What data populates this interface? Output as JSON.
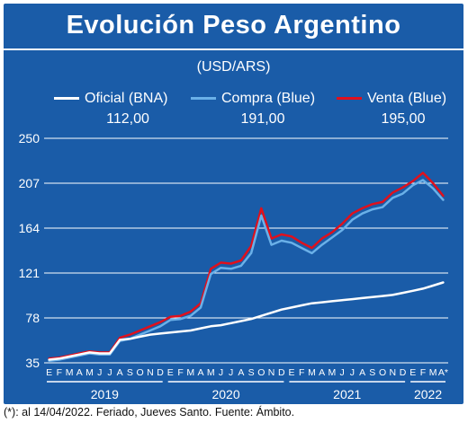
{
  "header": {
    "title": "Evolución Peso Argentino",
    "subtitle": "(USD/ARS)"
  },
  "legend": [
    {
      "label": "Oficial (BNA)",
      "value": "112,00",
      "color": "#ffffff"
    },
    {
      "label": "Compra (Blue)",
      "value": "191,00",
      "color": "#6ab0e8"
    },
    {
      "label": "Venta (Blue)",
      "value": "195,00",
      "color": "#e0101c"
    }
  ],
  "footnote": "(*): al 14/04/2022. Feriado, Jueves Santo. Fuente: Ámbito.",
  "chart_data": {
    "type": "line",
    "ylim": [
      35,
      250
    ],
    "y_ticks": [
      "250",
      "207",
      "164",
      "121",
      "78",
      "35"
    ],
    "grid": true,
    "month_labels": [
      "E",
      "F",
      "M",
      "A",
      "M",
      "J",
      "J",
      "A",
      "S",
      "O",
      "N",
      "D",
      "E",
      "F",
      "M",
      "A",
      "M",
      "J",
      "J",
      "A",
      "S",
      "O",
      "N",
      "D",
      "E",
      "F",
      "M",
      "A",
      "M",
      "J",
      "J",
      "A",
      "S",
      "O",
      "N",
      "D",
      "E",
      "F",
      "M",
      "A*"
    ],
    "year_labels": [
      "2019",
      "2020",
      "2021",
      "2022"
    ],
    "x": [
      "2019-01",
      "2019-02",
      "2019-03",
      "2019-04",
      "2019-05",
      "2019-06",
      "2019-07",
      "2019-08",
      "2019-09",
      "2019-10",
      "2019-11",
      "2019-12",
      "2020-01",
      "2020-02",
      "2020-03",
      "2020-04",
      "2020-05",
      "2020-06",
      "2020-07",
      "2020-08",
      "2020-09",
      "2020-10",
      "2020-11",
      "2020-12",
      "2021-01",
      "2021-02",
      "2021-03",
      "2021-04",
      "2021-05",
      "2021-06",
      "2021-07",
      "2021-08",
      "2021-09",
      "2021-10",
      "2021-11",
      "2021-12",
      "2022-01",
      "2022-02",
      "2022-03",
      "2022-04"
    ],
    "series": [
      {
        "name": "Oficial (BNA)",
        "color": "#ffffff",
        "values": [
          38,
          39,
          41,
          43,
          45,
          44,
          44,
          57,
          58,
          60,
          62,
          63,
          64,
          65,
          66,
          68,
          70,
          71,
          73,
          75,
          77,
          80,
          83,
          86,
          88,
          90,
          92,
          93,
          94,
          95,
          96,
          97,
          98,
          99,
          100,
          102,
          104,
          106,
          109,
          112
        ]
      },
      {
        "name": "Compra (Blue)",
        "color": "#6ab0e8",
        "values": [
          37,
          38,
          40,
          42,
          44,
          43,
          43,
          56,
          58,
          62,
          66,
          70,
          76,
          77,
          80,
          88,
          120,
          126,
          125,
          128,
          140,
          176,
          148,
          152,
          150,
          145,
          140,
          148,
          155,
          162,
          172,
          178,
          182,
          184,
          193,
          197,
          205,
          210,
          202,
          191
        ]
      },
      {
        "name": "Venta (Blue)",
        "color": "#e0101c",
        "values": [
          39,
          40,
          42,
          44,
          46,
          45,
          45,
          59,
          62,
          66,
          70,
          74,
          79,
          80,
          84,
          92,
          125,
          131,
          130,
          133,
          147,
          183,
          154,
          158,
          156,
          150,
          145,
          154,
          160,
          168,
          178,
          183,
          187,
          189,
          198,
          203,
          209,
          217,
          207,
          195
        ]
      }
    ]
  }
}
